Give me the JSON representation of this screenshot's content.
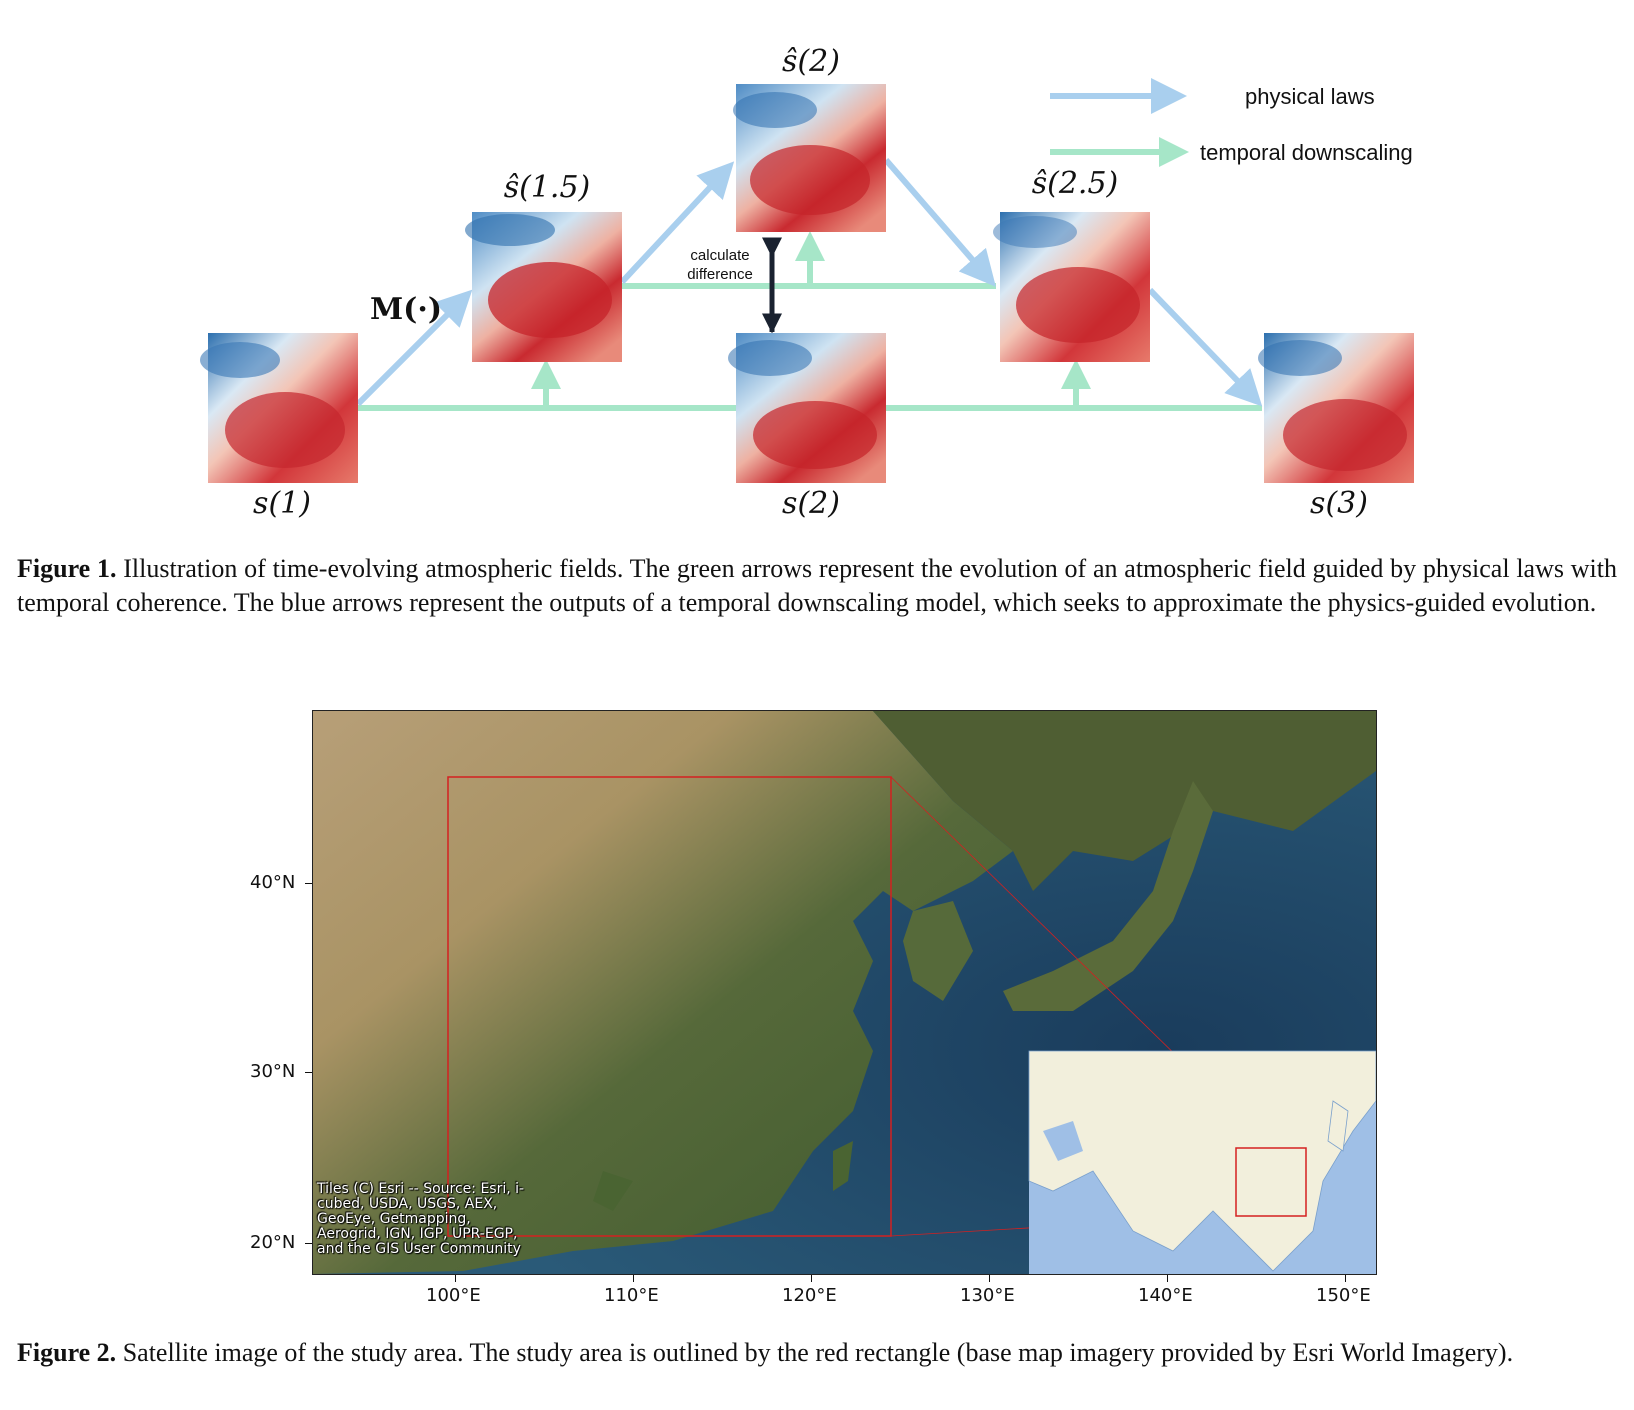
{
  "figure1": {
    "labels": {
      "s1": "s(1)",
      "s2": "s(2)",
      "s3": "s(3)",
      "shat15": "ŝ(1.5)",
      "shat2": "ŝ(2)",
      "shat25": "ŝ(2.5)",
      "model": "M(·)"
    },
    "legend": {
      "physical": "physical laws",
      "temporal": "temporal downscaling"
    },
    "calc_line1": "calculate",
    "calc_line2": "difference",
    "colors": {
      "blue_arrow": "#a9cfee",
      "green_arrow": "#a6e6c8",
      "black_arrow": "#1a2230"
    },
    "caption_label": "Figure 1.",
    "caption_text": " Illustration of time-evolving atmospheric fields. The green arrows represent the evolution of an atmospheric field guided by physical laws with temporal coherence. The blue arrows represent the outputs of a temporal downscaling model, which seeks to approximate the physics-guided evolution."
  },
  "figure2": {
    "y_ticks": [
      "40°N",
      "30°N",
      "20°N"
    ],
    "x_ticks": [
      "100°E",
      "110°E",
      "120°E",
      "130°E",
      "140°E",
      "150°E"
    ],
    "attribution": "Tiles (C) Esri -- Source: Esri, i-cubed, USDA, USGS, AEX, GeoEye, Getmapping, Aerogrid, IGN, IGP, UPR-EGP, and the GIS User Community",
    "study_area_color": "#d42020",
    "caption_label": "Figure 2.",
    "caption_text": " Satellite image of the study area. The study area is outlined by the red rectangle (base map imagery provided by Esri World Imagery)."
  }
}
